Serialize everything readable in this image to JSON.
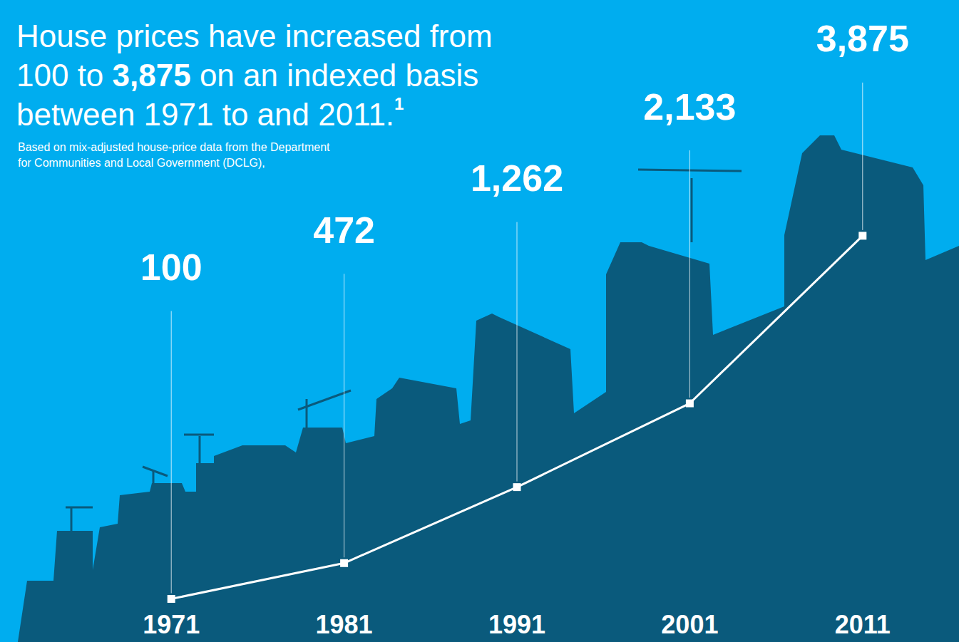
{
  "chart_data": {
    "type": "line",
    "title": "House prices have increased from 100 to 3,875 on an indexed basis between 1971 to and 2011.",
    "title_footnote": "1",
    "subtitle": "Based on mix-adjusted house-price data from the Department for Communities and Local Government (DCLG),",
    "categories": [
      "1971",
      "1981",
      "1991",
      "2001",
      "2011"
    ],
    "values": [
      100,
      472,
      1262,
      2133,
      3875
    ],
    "value_labels": [
      "100",
      "472",
      "1,262",
      "2,133",
      "3,875"
    ],
    "color": "#ffffff",
    "marker": "square",
    "line_style": "solid",
    "data_labels": true,
    "ylim": [
      0,
      6000
    ],
    "yticks": [
      0,
      2000,
      4000,
      6000
    ],
    "grid": false,
    "tick_labels": "x"
  }
}
